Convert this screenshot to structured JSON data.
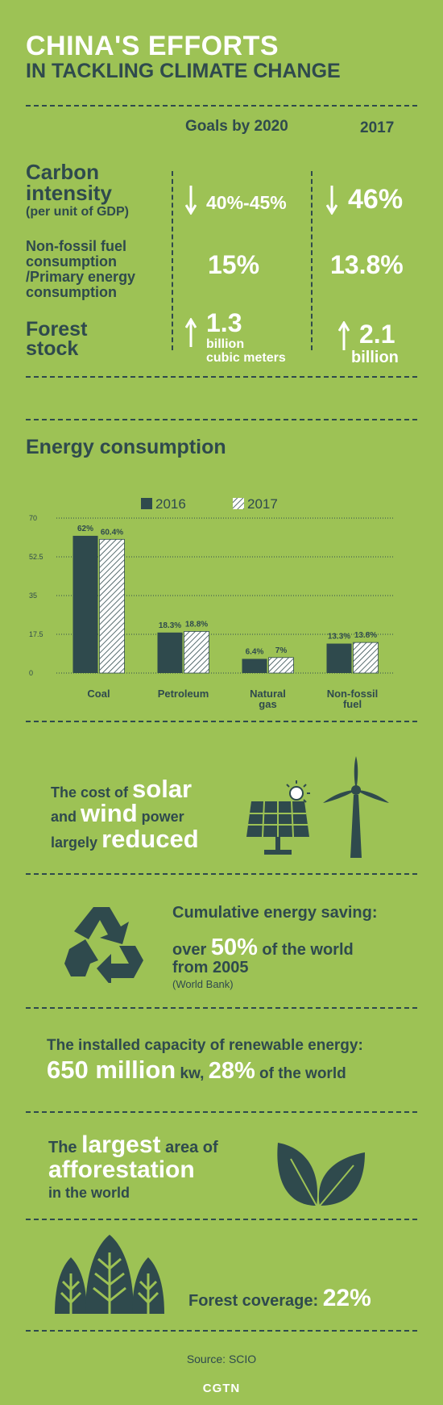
{
  "header": {
    "title": "CHINA'S EFFORTS",
    "subtitle": "IN TACKLING CLIMATE CHANGE"
  },
  "goals": {
    "col_goals": "Goals by 2020",
    "col_2017": "2017",
    "carbon": {
      "label1": "Carbon",
      "label2": "intensity",
      "sub": "(per unit of GDP)",
      "goal": "40%-45%",
      "actual": "46%"
    },
    "nonfossil": {
      "line1": "Non-fossil fuel",
      "line2": "consumption",
      "line3": "/Primary energy",
      "line4": "consumption",
      "goal": "15%",
      "actual": "13.8%"
    },
    "forest": {
      "label1": "Forest",
      "label2": "stock",
      "goal_num": "1.3",
      "goal_unit1": "billion",
      "goal_unit2": "cubic meters",
      "actual_num": "2.1",
      "actual_unit": "billion"
    }
  },
  "chart_data": {
    "type": "bar",
    "title": "Energy consumption",
    "categories": [
      "Coal",
      "Petroleum",
      "Natural gas",
      "Non-fossil fuel"
    ],
    "category_lines": [
      [
        "Coal"
      ],
      [
        "Petroleum"
      ],
      [
        "Natural",
        "gas"
      ],
      [
        "Non-fossil",
        "fuel"
      ]
    ],
    "series": [
      {
        "name": "2016",
        "values": [
          62,
          18.3,
          6.4,
          13.3
        ],
        "labels": [
          "62%",
          "18.3%",
          "6.4%",
          "13.3%"
        ]
      },
      {
        "name": "2017",
        "values": [
          60.4,
          18.8,
          7,
          13.8
        ],
        "labels": [
          "60.4%",
          "18.8%",
          "7%",
          "13.8%"
        ]
      }
    ],
    "yticks": [
      "0",
      "17.5",
      "35",
      "52.5",
      "70"
    ],
    "ylim": [
      0,
      70
    ],
    "grid": true,
    "legend": "top",
    "colors": {
      "2016": "#2f4a4d",
      "2017": "#ffffff"
    }
  },
  "solar": {
    "t1": "The cost of",
    "t2": "solar",
    "t3": "and",
    "t4": "wind",
    "t5": "power",
    "t6": "largely",
    "t7": "reduced"
  },
  "saving": {
    "title": "Cumulative energy saving:",
    "t1": "over",
    "t2": "50%",
    "t3": "of the world",
    "t4": "from 2005",
    "source": "(World Bank)"
  },
  "renewable": {
    "title": "The installed capacity of renewable energy:",
    "big1": "650 million",
    "small1": "kw,",
    "big2": "28%",
    "small2": "of the world"
  },
  "afforest": {
    "t1": "The",
    "t2": "largest",
    "t3": "area of",
    "t4": "afforestation",
    "t5": "in the world"
  },
  "coverage": {
    "label": "Forest coverage:",
    "value": "22%"
  },
  "footer": {
    "source": "Source: SCIO",
    "brand": "CGTN"
  }
}
